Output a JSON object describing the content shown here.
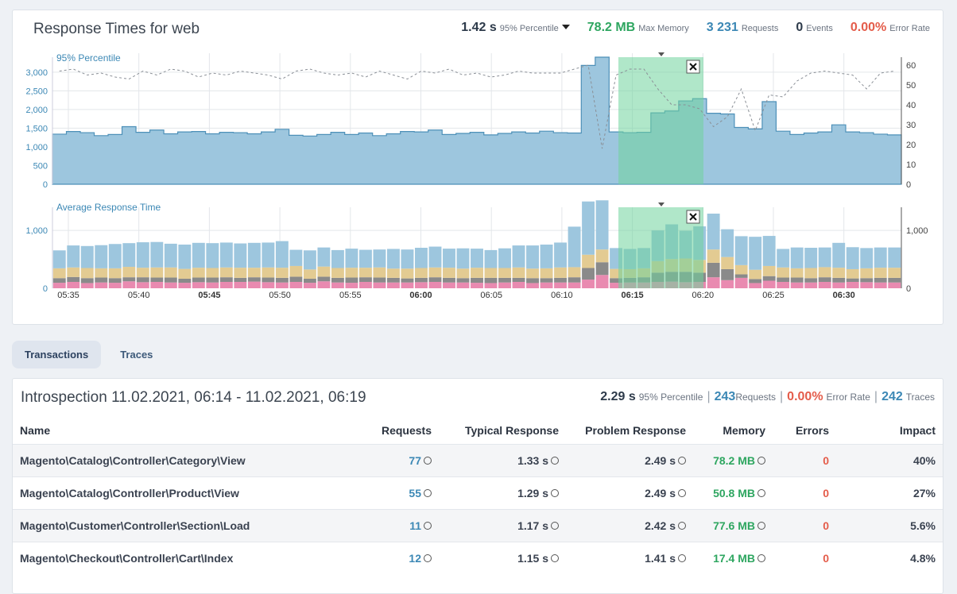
{
  "header": {
    "title": "Response Times for web",
    "stats": [
      {
        "value": "1.42 s",
        "label": "95% Percentile",
        "color": "#2d3a4a",
        "dropdown": true
      },
      {
        "value": "78.2 MB",
        "label": "Max Memory",
        "color": "#2ea660"
      },
      {
        "value": "3 231",
        "label": "Requests",
        "color": "#3c88b5"
      },
      {
        "value": "0",
        "label": "Events",
        "color": "#2d3a4a"
      },
      {
        "value": "0.00%",
        "label": "Error Rate",
        "color": "#e45c4a"
      }
    ]
  },
  "chart_data": [
    {
      "type": "area",
      "title": "95% Percentile",
      "ylim": [
        0,
        3400
      ],
      "y_ticks": [
        "0",
        "500",
        "1,000",
        "1,500",
        "2,000",
        "2,500",
        "3,000"
      ],
      "y2_ticks": [
        "0",
        "10",
        "20",
        "30",
        "40",
        "50",
        "60"
      ],
      "y2lim": [
        0,
        64
      ],
      "selection": {
        "from": "06:14",
        "to": "06:19"
      },
      "series": [
        {
          "values": [
            1340,
            1410,
            1380,
            1300,
            1330,
            1540,
            1390,
            1450,
            1350,
            1400,
            1410,
            1350,
            1390,
            1380,
            1350,
            1400,
            1470,
            1310,
            1290,
            1330,
            1390,
            1330,
            1370,
            1300,
            1350,
            1410,
            1400,
            1450,
            1330,
            1360,
            1390,
            1320,
            1360,
            1400,
            1370,
            1420,
            1380,
            1370,
            3180,
            3400,
            1400,
            1380,
            1390,
            1910,
            1960,
            2230,
            2290,
            1900,
            1880,
            1520,
            1480,
            2210,
            1420,
            1330,
            1370,
            1400,
            1590,
            1400,
            1380,
            1340,
            1320
          ]
        },
        {
          "values": [
            57,
            58,
            55,
            56,
            54,
            53,
            57,
            55,
            58,
            57,
            54,
            56,
            55,
            57,
            56,
            55,
            53,
            57,
            58,
            56,
            55,
            56,
            54,
            57,
            55,
            53,
            57,
            56,
            58,
            55,
            56,
            54,
            55,
            57,
            56,
            56,
            56,
            58,
            60,
            18,
            55,
            58,
            58,
            48,
            40,
            40,
            38,
            29,
            34,
            48,
            27,
            45,
            44,
            52,
            56,
            57,
            56,
            55,
            48,
            56,
            57
          ]
        }
      ]
    },
    {
      "type": "bar",
      "title": "Average Response Time",
      "ylim": [
        0,
        1400
      ],
      "y_ticks": [
        "0",
        "1,000"
      ],
      "y2_ticks": [
        "0",
        "1,000"
      ],
      "x_ticks": [
        "05:35",
        "05:40",
        "05:45",
        "05:50",
        "05:55",
        "06:00",
        "06:05",
        "06:10",
        "06:15",
        "06:20",
        "06:25",
        "06:30"
      ],
      "x_ticks_bold": [
        "05:45",
        "06:00",
        "06:15",
        "06:30"
      ],
      "selection": {
        "from": "06:14",
        "to": "06:19"
      },
      "series": [
        {
          "name": "pink",
          "values": [
            95,
            110,
            90,
            100,
            95,
            120,
            105,
            110,
            100,
            95,
            105,
            100,
            110,
            110,
            115,
            105,
            100,
            110,
            95,
            120,
            100,
            95,
            110,
            100,
            100,
            100,
            105,
            110,
            100,
            100,
            95,
            90,
            100,
            110,
            90,
            100,
            100,
            100,
            150,
            230,
            95,
            100,
            100,
            110,
            115,
            105,
            110,
            190,
            140,
            180,
            90,
            130,
            110,
            100,
            100,
            110,
            100,
            110,
            105,
            100,
            100
          ]
        },
        {
          "name": "gray",
          "values": [
            80,
            85,
            85,
            85,
            80,
            70,
            85,
            75,
            85,
            70,
            80,
            85,
            80,
            70,
            75,
            80,
            80,
            90,
            70,
            80,
            80,
            90,
            80,
            85,
            80,
            70,
            75,
            80,
            80,
            75,
            85,
            90,
            80,
            70,
            85,
            75,
            80,
            90,
            200,
            220,
            80,
            80,
            90,
            160,
            170,
            180,
            160,
            250,
            190,
            60,
            70,
            80,
            75,
            85,
            75,
            80,
            80,
            60,
            70,
            80,
            80
          ]
        },
        {
          "name": "tan",
          "values": [
            170,
            165,
            175,
            160,
            170,
            180,
            165,
            175,
            175,
            170,
            170,
            165,
            170,
            175,
            165,
            175,
            175,
            185,
            160,
            175,
            170,
            170,
            165,
            175,
            160,
            170,
            170,
            170,
            175,
            165,
            175,
            170,
            170,
            180,
            165,
            170,
            180,
            175,
            230,
            220,
            160,
            150,
            155,
            200,
            220,
            230,
            220,
            230,
            210,
            160,
            160,
            175,
            175,
            160,
            175,
            175,
            175,
            160,
            170,
            175,
            175
          ]
        },
        {
          "name": "blue",
          "values": [
            310,
            380,
            380,
            400,
            420,
            410,
            440,
            440,
            410,
            420,
            430,
            430,
            430,
            420,
            430,
            430,
            460,
            280,
            330,
            330,
            310,
            330,
            310,
            310,
            340,
            330,
            350,
            360,
            330,
            350,
            330,
            310,
            340,
            380,
            400,
            410,
            430,
            700,
            920,
            850,
            360,
            350,
            350,
            530,
            600,
            480,
            580,
            620,
            480,
            500,
            570,
            520,
            320,
            360,
            350,
            340,
            430,
            380,
            350,
            350,
            350
          ]
        }
      ]
    }
  ],
  "tabs": [
    {
      "label": "Transactions",
      "active": true
    },
    {
      "label": "Traces",
      "active": false
    }
  ],
  "introspection": {
    "title": "Introspection 11.02.2021, 06:14 - 11.02.2021, 06:19",
    "p95": "2.29 s",
    "p95_label": "95% Percentile",
    "requests": "243",
    "requests_label": "Requests",
    "error_rate": "0.00%",
    "error_rate_label": "Error Rate",
    "traces": "242",
    "traces_label": "Traces"
  },
  "table": {
    "headers": {
      "name": "Name",
      "requests": "Requests",
      "typical": "Typical Response",
      "problem": "Problem Response",
      "memory": "Memory",
      "errors": "Errors",
      "impact": "Impact"
    },
    "rows": [
      {
        "name": "Magento\\Catalog\\Controller\\Category\\View",
        "requests": "77",
        "typical": "1.33 s",
        "problem": "2.49 s",
        "memory": "78.2 MB",
        "errors": "0",
        "impact": "40%"
      },
      {
        "name": "Magento\\Catalog\\Controller\\Product\\View",
        "requests": "55",
        "typical": "1.29 s",
        "problem": "2.49 s",
        "memory": "50.8 MB",
        "errors": "0",
        "impact": "27%"
      },
      {
        "name": "Magento\\Customer\\Controller\\Section\\Load",
        "requests": "11",
        "typical": "1.17 s",
        "problem": "2.42 s",
        "memory": "77.6 MB",
        "errors": "0",
        "impact": "5.6%"
      },
      {
        "name": "Magento\\Checkout\\Controller\\Cart\\Index",
        "requests": "12",
        "typical": "1.15 s",
        "problem": "1.41 s",
        "memory": "17.4 MB",
        "errors": "0",
        "impact": "4.8%"
      }
    ]
  },
  "colors": {
    "area_fill": "#9dc6de",
    "area_line": "#4d90b8",
    "selection": "#6fd49c",
    "pink": "#e98ab0",
    "gray": "#8a8a8a",
    "tan": "#e3cb92",
    "blue": "#9dc6de"
  }
}
